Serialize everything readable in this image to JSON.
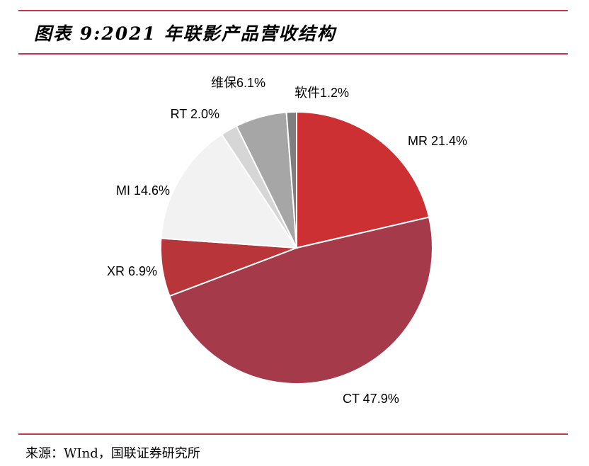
{
  "colors": {
    "rule": "#c8344a"
  },
  "title": "图表 9:2021 年联影产品营收结构",
  "source": "来源：WInd，国联证券研究所",
  "chart_data": {
    "type": "pie",
    "title": "图表 9:2021 年联影产品营收结构",
    "start_angle_deg": 0,
    "direction": "clockwise",
    "slices": [
      {
        "name": "MR",
        "value": 21.4,
        "label": "MR 21.4%",
        "color": "#cc3033"
      },
      {
        "name": "CT",
        "value": 47.9,
        "label": "CT 47.9%",
        "color": "#a53a4b"
      },
      {
        "name": "XR",
        "value": 6.9,
        "label": "XR 6.9%",
        "color": "#b8363a"
      },
      {
        "name": "MI",
        "value": 14.6,
        "label": "MI 14.6%",
        "color": "#f2f2f2"
      },
      {
        "name": "RT",
        "value": 2.0,
        "label": "RT 2.0%",
        "color": "#d6d6d6"
      },
      {
        "name": "维保",
        "value": 6.1,
        "label": "维保6.1%",
        "color": "#a6a6a6"
      },
      {
        "name": "软件",
        "value": 1.2,
        "label": "软件1.2%",
        "color": "#7f7f7f"
      }
    ]
  }
}
